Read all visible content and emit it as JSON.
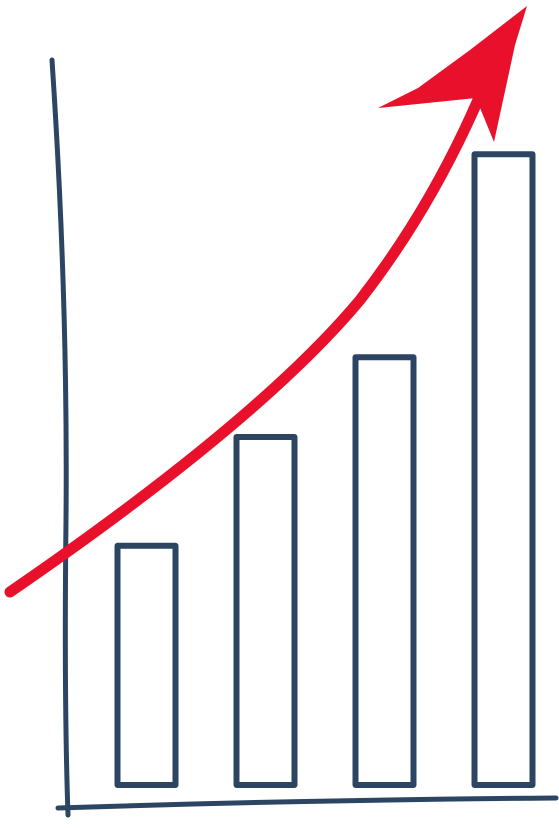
{
  "chart_data": {
    "type": "bar",
    "categories": [
      null,
      null,
      null,
      null
    ],
    "values": [
      33,
      48,
      59,
      87
    ],
    "color": "#2c4563",
    "arrow_color": "#e8102a",
    "ylim": [
      0,
      100
    ]
  }
}
